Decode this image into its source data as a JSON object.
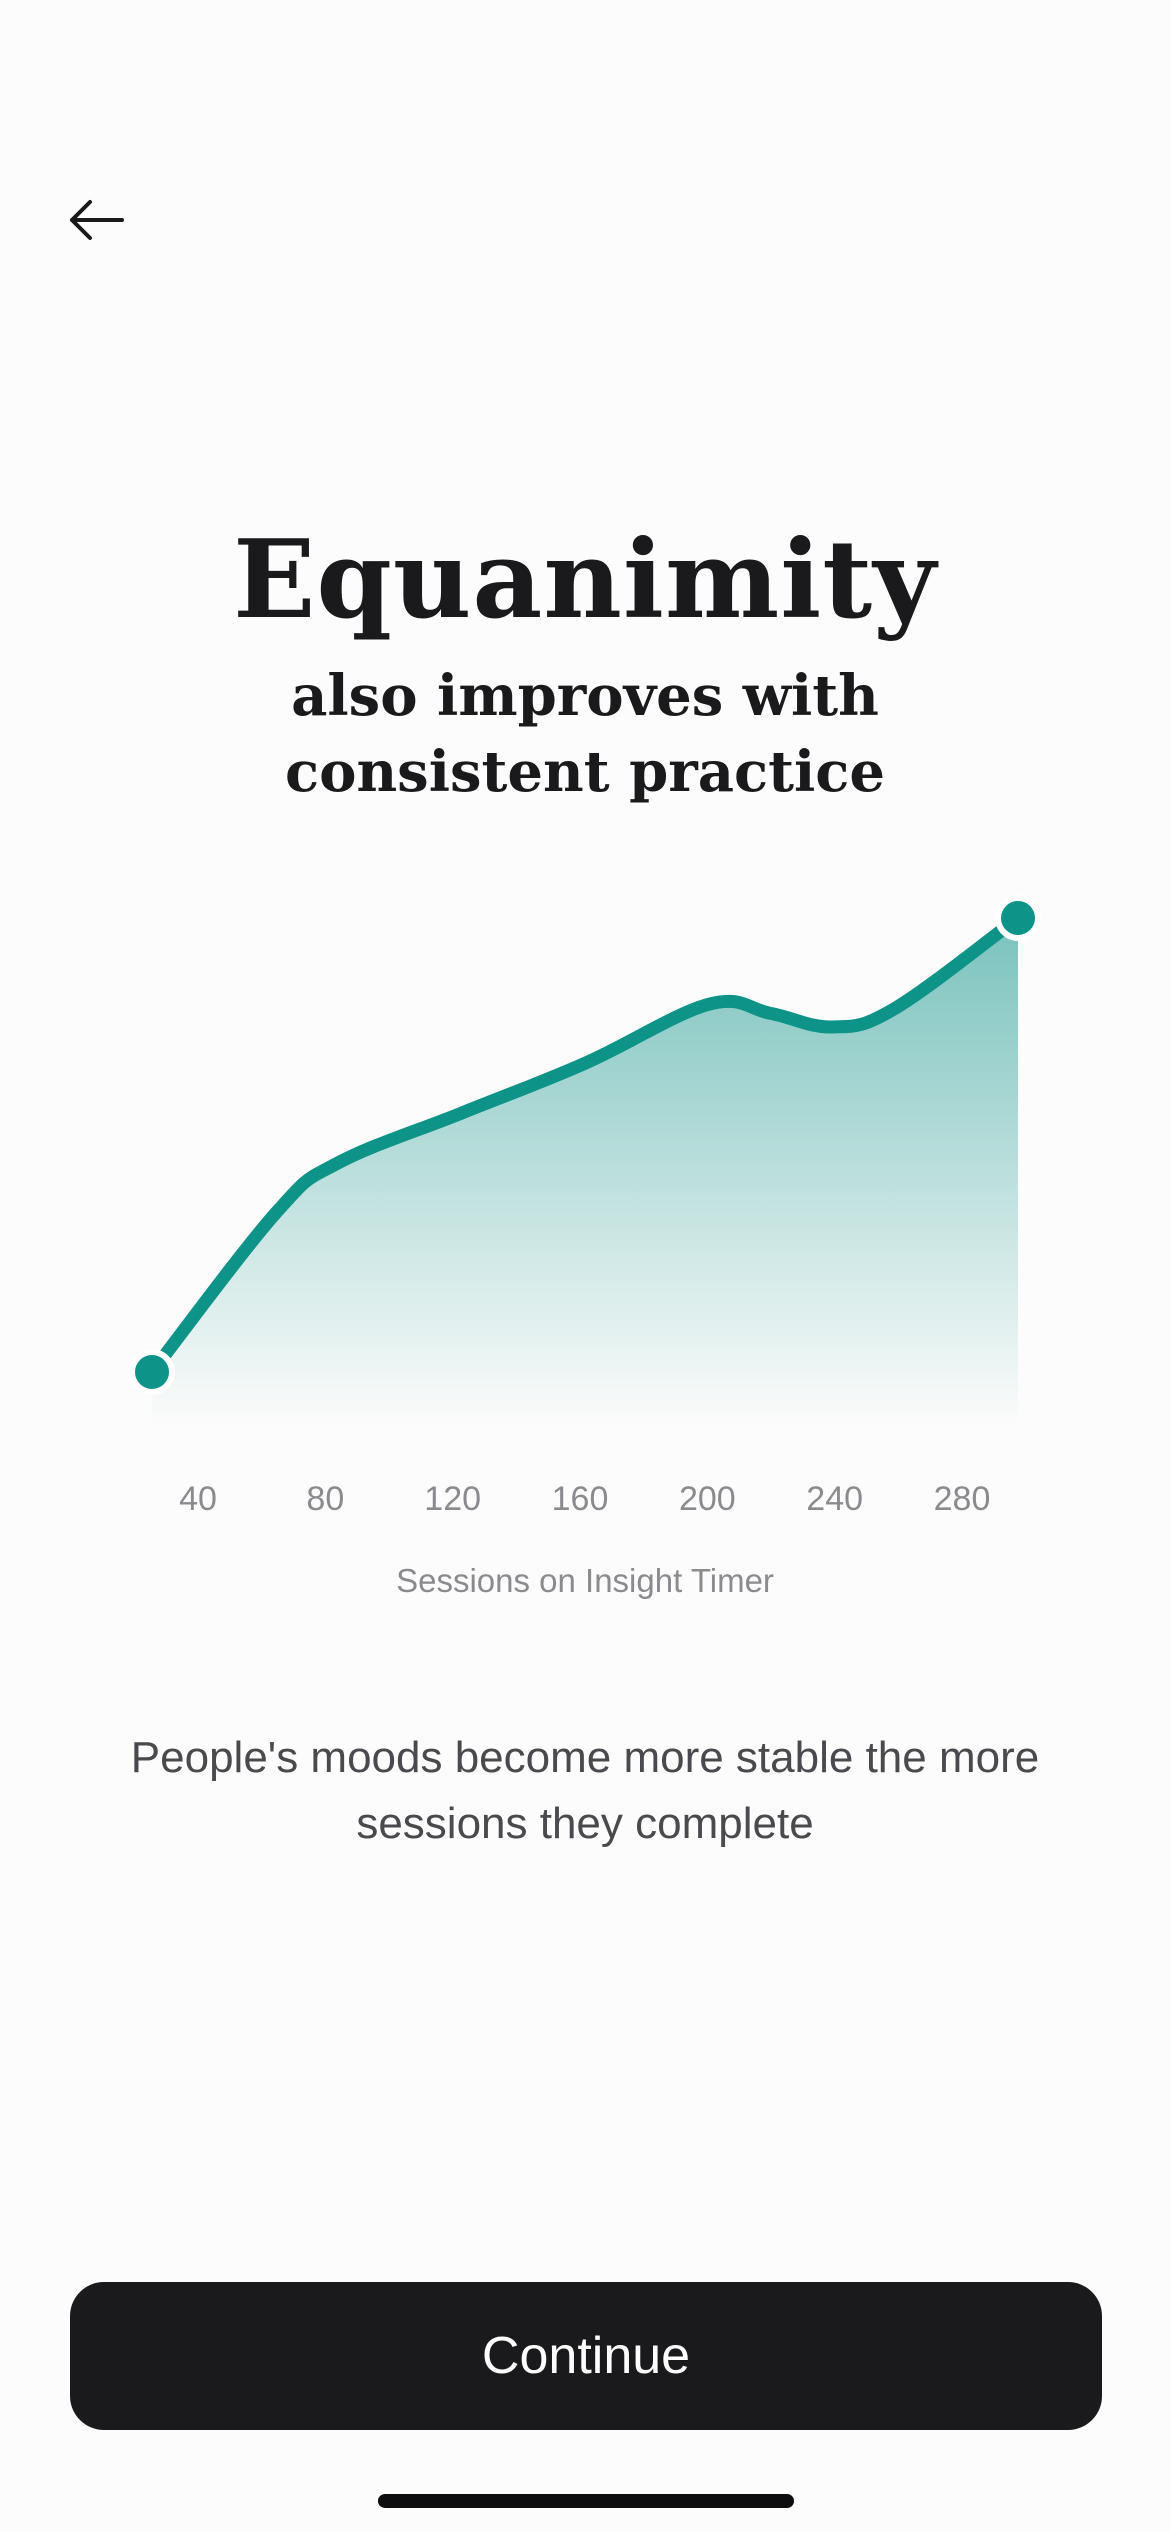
{
  "nav": {
    "back_icon": "arrow-left-icon"
  },
  "header": {
    "title": "Equanimity",
    "subtitle": "also improves with consistent practice"
  },
  "chart_data": {
    "type": "area",
    "title": "",
    "xlabel": "Sessions on Insight Timer",
    "ylabel": "",
    "x_ticks": [
      "40",
      "80",
      "120",
      "160",
      "200",
      "240",
      "280"
    ],
    "x": [
      20,
      60,
      80,
      120,
      160,
      200,
      220,
      240,
      260,
      300
    ],
    "values": [
      0,
      35,
      46,
      57,
      68,
      81,
      79,
      76,
      80,
      100
    ],
    "xlim": [
      20,
      300
    ],
    "ylim": [
      0,
      100
    ],
    "grid": false,
    "series_color": "#0e9389",
    "endpoint_markers": true
  },
  "description": "People's moods become more stable the more sessions they complete",
  "footer": {
    "continue_label": "Continue"
  },
  "colors": {
    "accent": "#0e9389",
    "button_bg": "#1a191c",
    "background": "#fdfcfc"
  }
}
